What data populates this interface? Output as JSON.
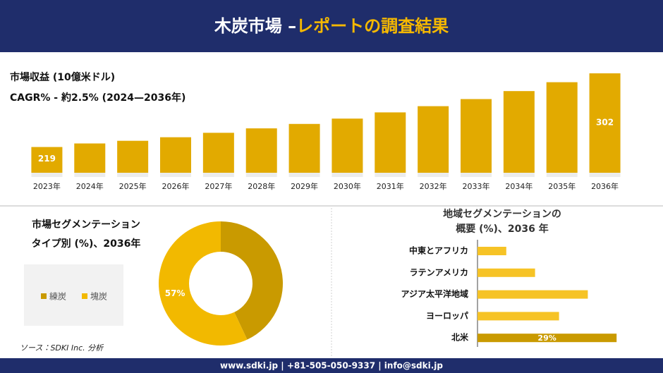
{
  "header": {
    "title_main": "木炭市場 –",
    "title_accent": "レポートの調査結果"
  },
  "chart_data": [
    {
      "type": "bar",
      "title": "市場収益 (10億米ドル)",
      "subtitle": "CAGR% - 約2.5% (2024—2036年)",
      "categories": [
        "2023年",
        "2024年",
        "2025年",
        "2026年",
        "2027年",
        "2028年",
        "2029年",
        "2030年",
        "2031年",
        "2032年",
        "2033年",
        "2034年",
        "2035年",
        "2036年"
      ],
      "values": [
        219,
        223,
        226,
        230,
        235,
        240,
        245,
        251,
        258,
        265,
        273,
        282,
        292,
        302
      ],
      "value_labels": [
        "219",
        null,
        null,
        null,
        null,
        null,
        null,
        null,
        null,
        null,
        null,
        null,
        null,
        "302"
      ],
      "ylim": [
        190,
        302
      ],
      "color": "#e2aa00"
    },
    {
      "type": "pie",
      "title": [
        "市場セグメンテーション",
        "タイプ別 (%)、2036年"
      ],
      "categories": [
        "練炭",
        "塊炭"
      ],
      "values": [
        43,
        57
      ],
      "value_labels": [
        null,
        "57%"
      ],
      "colors": [
        "#c99a00",
        "#f2b900"
      ]
    },
    {
      "type": "hbar",
      "title": [
        "地域セグメンテーションの",
        "概要 (%)、2036 年"
      ],
      "categories": [
        "中東とアフリカ",
        "ラテンアメリカ",
        "アジア太平洋地域",
        "ヨーロッパ",
        "北米"
      ],
      "values": [
        6,
        12,
        23,
        17,
        29
      ],
      "value_labels": [
        null,
        null,
        null,
        null,
        "29%"
      ],
      "xlim": [
        0,
        30
      ],
      "colors": [
        "#f6c326",
        "#f6c326",
        "#f6c326",
        "#f6c326",
        "#c99a00"
      ]
    }
  ],
  "source": "ソース：SDKI Inc. 分析",
  "footer": "www.sdki.jp | +81-505-050-9337 | info@sdki.jp"
}
